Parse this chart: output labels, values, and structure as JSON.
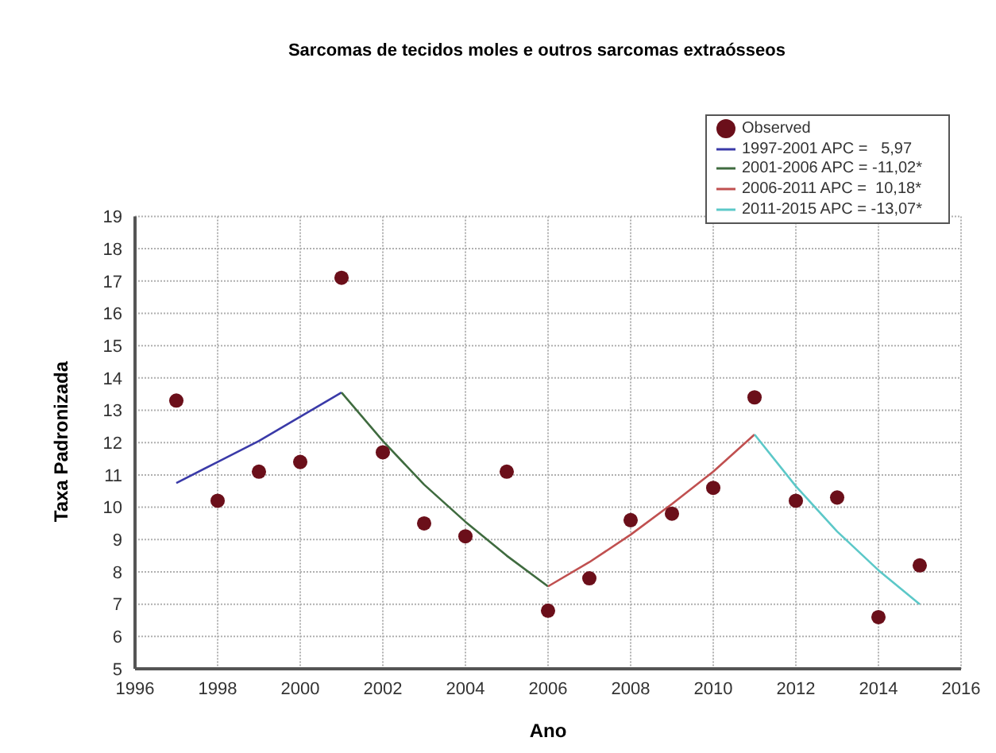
{
  "chart_data": {
    "type": "scatter",
    "title": "Sarcomas de tecidos moles e outros sarcomas extraósseos",
    "xlabel": "Ano",
    "ylabel": "Taxa Padronizada",
    "xlim": [
      1996,
      2016
    ],
    "xticks": [
      1996,
      1998,
      2000,
      2002,
      2004,
      2006,
      2008,
      2010,
      2012,
      2014,
      2016
    ],
    "ylim": [
      5,
      19
    ],
    "yticks": [
      5,
      6,
      7,
      8,
      9,
      10,
      11,
      12,
      13,
      14,
      15,
      16,
      17,
      18,
      19
    ],
    "grid": true,
    "legend": "top right",
    "series": [
      {
        "name": "Observed",
        "marker": "circle",
        "color": "#6b0f1a",
        "x": [
          1997,
          1998,
          1999,
          2000,
          2001,
          2002,
          2003,
          2004,
          2005,
          2006,
          2007,
          2008,
          2009,
          2010,
          2011,
          2012,
          2013,
          2014,
          2015
        ],
        "values": [
          13.3,
          10.2,
          11.1,
          11.4,
          17.1,
          11.7,
          9.5,
          9.1,
          11.1,
          6.8,
          7.8,
          9.6,
          9.8,
          10.6,
          13.4,
          10.2,
          10.3,
          6.6,
          8.2
        ]
      },
      {
        "name": "1997-2001 APC =   5,97",
        "type": "line",
        "marker": "none",
        "color": "#3a3aa8",
        "x": [
          1997,
          1998,
          1999,
          2000,
          2001
        ],
        "values": [
          10.75,
          11.4,
          12.05,
          12.8,
          13.55
        ]
      },
      {
        "name": "2001-2006 APC = -11,02*",
        "type": "line",
        "marker": "none",
        "color": "#3f6b3f",
        "x": [
          2001,
          2002,
          2003,
          2004,
          2005,
          2006
        ],
        "values": [
          13.55,
          12.05,
          10.7,
          9.55,
          8.5,
          7.55
        ]
      },
      {
        "name": "2006-2011 APC =  10,18*",
        "type": "line",
        "marker": "none",
        "color": "#c05050",
        "x": [
          2006,
          2007,
          2008,
          2009,
          2010,
          2011
        ],
        "values": [
          7.55,
          8.3,
          9.15,
          10.1,
          11.1,
          12.25
        ]
      },
      {
        "name": "2011-2015 APC = -13,07*",
        "type": "line",
        "marker": "none",
        "color": "#5cc8c8",
        "x": [
          2011,
          2012,
          2013,
          2014,
          2015
        ],
        "values": [
          12.25,
          10.65,
          9.25,
          8.05,
          7.0
        ]
      }
    ]
  }
}
